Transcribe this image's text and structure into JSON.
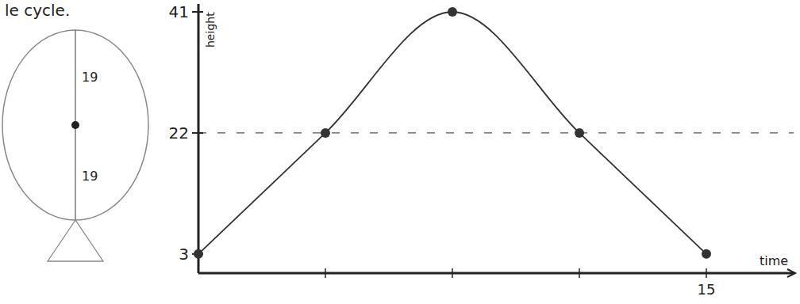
{
  "chart_data": {
    "type": "line",
    "caption": "le cycle.",
    "y_label": "height",
    "x_label": "time",
    "categories": [
      null,
      null,
      null,
      null,
      "15"
    ],
    "values": [
      3,
      22,
      41,
      22,
      3
    ],
    "color": "#333333",
    "marker": "circle",
    "ylim": [
      0,
      41
    ],
    "yticks": [
      3,
      22,
      41
    ],
    "reference_line": {
      "value": 22,
      "line_style": "dashed"
    },
    "wheel_radius_labels": [
      19,
      19
    ]
  }
}
